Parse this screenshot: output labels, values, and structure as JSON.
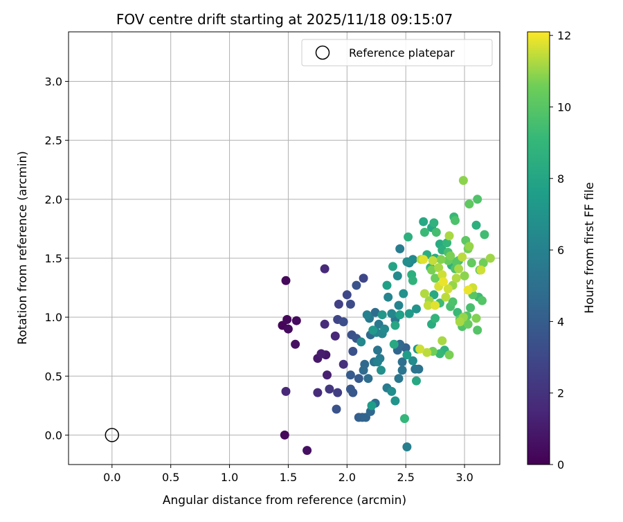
{
  "chart_data": {
    "type": "scatter",
    "title": "FOV centre drift starting at 2025/11/18 09:15:07",
    "xlabel": "Angular distance from reference (arcmin)",
    "ylabel": "Rotation from reference (arcmin)",
    "xlim": [
      -0.37,
      3.3
    ],
    "ylim": [
      -0.25,
      3.42
    ],
    "xticks": [
      "0.0",
      "0.5",
      "1.0",
      "1.5",
      "2.0",
      "2.5",
      "3.0"
    ],
    "yticks": [
      "0.0",
      "0.5",
      "1.0",
      "1.5",
      "2.0",
      "2.5",
      "3.0"
    ],
    "grid": true,
    "legend": {
      "location": "upper right",
      "label": "Reference platepar"
    },
    "reference_point": {
      "x": 0.0,
      "y": 0.0
    },
    "colorbar": {
      "label": "Hours from first FF file",
      "range": [
        0,
        12.1
      ],
      "ticks": [
        "0",
        "2",
        "4",
        "6",
        "8",
        "10",
        "12"
      ],
      "colormap": "viridis"
    },
    "series": [
      {
        "points": [
          [
            1.48,
            1.31,
            0.3
          ],
          [
            1.45,
            0.93,
            0.2
          ],
          [
            1.49,
            0.98,
            0.3
          ],
          [
            1.5,
            0.9,
            0.4
          ],
          [
            1.57,
            0.97,
            0.4
          ],
          [
            1.56,
            0.77,
            0.6
          ],
          [
            1.47,
            0.0,
            0.3
          ],
          [
            1.66,
            -0.13,
            0.6
          ],
          [
            1.48,
            0.37,
            1.5
          ],
          [
            1.75,
            0.65,
            0.9
          ],
          [
            1.78,
            0.69,
            1.1
          ],
          [
            1.82,
            0.68,
            0.9
          ],
          [
            1.83,
            0.51,
            1.2
          ],
          [
            1.81,
            1.41,
            1.6
          ],
          [
            1.81,
            0.94,
            1.7
          ],
          [
            1.75,
            0.36,
            1.7
          ],
          [
            1.9,
            0.84,
            1.5
          ],
          [
            1.97,
            0.6,
            1.9
          ],
          [
            1.85,
            0.39,
            2.2
          ],
          [
            1.92,
            0.36,
            2.5
          ],
          [
            1.92,
            0.98,
            2.9
          ],
          [
            1.93,
            1.11,
            2.6
          ],
          [
            2.0,
            1.19,
            3.0
          ],
          [
            2.03,
            1.11,
            3.1
          ],
          [
            1.97,
            0.96,
            3.3
          ],
          [
            2.05,
            0.71,
            3.4
          ],
          [
            2.04,
            0.85,
            3.4
          ],
          [
            2.08,
            0.82,
            3.6
          ],
          [
            2.08,
            1.27,
            3.5
          ],
          [
            2.14,
            1.33,
            2.9
          ],
          [
            1.91,
            0.22,
            3.5
          ],
          [
            2.03,
            0.39,
            3.7
          ],
          [
            2.05,
            0.36,
            3.7
          ],
          [
            2.03,
            0.51,
            3.9
          ],
          [
            2.1,
            0.48,
            3.9
          ],
          [
            2.1,
            0.15,
            4.1
          ],
          [
            2.13,
            0.15,
            4.3
          ],
          [
            2.16,
            0.15,
            4.4
          ],
          [
            2.2,
            0.2,
            4.6
          ],
          [
            2.24,
            0.27,
            4.9
          ],
          [
            2.15,
            0.6,
            4.6
          ],
          [
            2.14,
            0.55,
            4.7
          ],
          [
            2.18,
            0.48,
            4.9
          ],
          [
            2.23,
            0.62,
            5.2
          ],
          [
            2.2,
            0.85,
            4.7
          ],
          [
            2.24,
            1.04,
            4.8
          ],
          [
            2.26,
            0.72,
            5.3
          ],
          [
            2.28,
            0.65,
            5.7
          ],
          [
            2.27,
            0.94,
            5.5
          ],
          [
            2.19,
            0.99,
            5.6
          ],
          [
            2.17,
            1.02,
            6.0
          ],
          [
            2.12,
            0.79,
            6.4
          ],
          [
            2.29,
            0.55,
            6.8
          ],
          [
            2.26,
            0.62,
            6.0
          ],
          [
            2.34,
            0.4,
            5.7
          ],
          [
            2.38,
            0.37,
            6.6
          ],
          [
            2.41,
            0.29,
            7.0
          ],
          [
            2.25,
            0.87,
            6.2
          ],
          [
            2.3,
            0.86,
            6.3
          ],
          [
            2.32,
            0.9,
            6.5
          ],
          [
            2.35,
            1.17,
            6.2
          ],
          [
            2.38,
            1.03,
            6.3
          ],
          [
            2.41,
            0.98,
            5.5
          ],
          [
            2.44,
            1.1,
            6.1
          ],
          [
            2.44,
            0.48,
            5.4
          ],
          [
            2.47,
            0.55,
            5.3
          ],
          [
            2.45,
            0.77,
            4.6
          ],
          [
            2.47,
            0.62,
            5.0
          ],
          [
            2.43,
            0.72,
            4.5
          ],
          [
            2.5,
            0.74,
            4.2
          ],
          [
            2.51,
            -0.1,
            5.9
          ],
          [
            2.45,
            1.58,
            5.7
          ],
          [
            2.43,
            1.35,
            6.5
          ],
          [
            2.51,
            1.47,
            6.7
          ],
          [
            2.48,
            1.2,
            6.9
          ],
          [
            2.53,
            1.46,
            6.3
          ],
          [
            2.56,
            1.49,
            6.5
          ],
          [
            2.59,
            1.07,
            7.0
          ],
          [
            2.58,
            0.56,
            5.3
          ],
          [
            2.61,
            0.56,
            5.2
          ],
          [
            2.56,
            0.63,
            6.6
          ],
          [
            2.6,
            0.73,
            7.3
          ],
          [
            2.51,
            0.68,
            7.5
          ],
          [
            2.59,
            0.46,
            8.1
          ],
          [
            2.49,
            0.14,
            9.0
          ],
          [
            2.21,
            0.25,
            7.5
          ],
          [
            2.22,
            0.89,
            7.3
          ],
          [
            2.3,
            1.02,
            7.2
          ],
          [
            2.34,
            1.27,
            7.7
          ],
          [
            2.39,
            1.43,
            7.9
          ],
          [
            2.4,
            0.77,
            8.2
          ],
          [
            2.41,
            0.93,
            8.1
          ],
          [
            2.45,
            1.02,
            7.6
          ],
          [
            2.52,
            1.68,
            8.6
          ],
          [
            2.53,
            1.03,
            7.4
          ],
          [
            2.55,
            1.36,
            8.6
          ],
          [
            2.56,
            1.31,
            8.8
          ],
          [
            2.65,
            1.81,
            8.1
          ],
          [
            2.72,
            1.76,
            8.1
          ],
          [
            2.68,
            1.53,
            8.5
          ],
          [
            2.66,
            1.72,
            9.2
          ],
          [
            2.74,
            1.8,
            8.7
          ],
          [
            2.75,
            1.5,
            8.4
          ],
          [
            2.71,
            1.42,
            8.9
          ],
          [
            2.76,
            1.72,
            9.5
          ],
          [
            2.79,
            1.62,
            8.3
          ],
          [
            2.81,
            1.57,
            8.6
          ],
          [
            2.85,
            1.63,
            9.0
          ],
          [
            2.86,
            1.55,
            9.6
          ],
          [
            2.89,
            1.44,
            8.8
          ],
          [
            2.91,
            1.85,
            9.1
          ],
          [
            2.92,
            1.82,
            9.7
          ],
          [
            2.92,
            1.41,
            9.8
          ],
          [
            2.95,
            1.48,
            9.5
          ],
          [
            3.04,
            1.96,
            10.2
          ],
          [
            3.11,
            2.0,
            9.8
          ],
          [
            2.99,
            2.16,
            10.9
          ],
          [
            3.1,
            1.78,
            8.6
          ],
          [
            3.17,
            1.7,
            9.4
          ],
          [
            3.01,
            1.65,
            10.1
          ],
          [
            2.74,
            1.19,
            8.2
          ],
          [
            2.75,
            0.99,
            8.9
          ],
          [
            2.72,
            0.94,
            8.4
          ],
          [
            2.79,
            0.69,
            9.1
          ],
          [
            2.83,
            0.72,
            8.7
          ],
          [
            2.79,
            1.12,
            9.3
          ],
          [
            2.88,
            1.09,
            9.6
          ],
          [
            2.9,
            1.13,
            9.7
          ],
          [
            2.94,
            1.04,
            9.2
          ],
          [
            2.96,
            0.98,
            10.2
          ],
          [
            3.05,
            1.08,
            9.6
          ],
          [
            3.07,
            1.19,
            10.0
          ],
          [
            3.12,
            1.17,
            9.3
          ],
          [
            3.15,
            1.14,
            9.9
          ],
          [
            3.02,
            1.01,
            9.9
          ],
          [
            3.03,
            0.94,
            10.4
          ],
          [
            3.1,
            0.99,
            10.8
          ],
          [
            3.11,
            0.89,
            9.9
          ],
          [
            2.98,
            0.92,
            9.8
          ],
          [
            3.13,
            1.4,
            10.1
          ],
          [
            3.16,
            1.46,
            10.6
          ],
          [
            3.22,
            1.5,
            11.1
          ],
          [
            3.06,
            1.46,
            10.3
          ],
          [
            3.03,
            1.58,
            10.6
          ],
          [
            3.04,
            1.6,
            11.0
          ],
          [
            2.98,
            1.51,
            11.4
          ],
          [
            2.95,
            1.41,
            11.2
          ],
          [
            3.0,
            1.35,
            10.9
          ],
          [
            2.93,
            1.33,
            11.3
          ],
          [
            2.9,
            1.27,
            11.0
          ],
          [
            2.86,
            1.24,
            11.6
          ],
          [
            2.84,
            1.17,
            11.4
          ],
          [
            2.82,
            1.3,
            11.9
          ],
          [
            2.78,
            1.26,
            11.7
          ],
          [
            2.81,
            1.36,
            11.6
          ],
          [
            2.78,
            1.42,
            11.2
          ],
          [
            2.73,
            1.48,
            11.5
          ],
          [
            2.8,
            1.49,
            10.8
          ],
          [
            2.86,
            1.48,
            10.4
          ],
          [
            2.88,
            1.52,
            10.7
          ],
          [
            2.93,
            1.47,
            10.0
          ],
          [
            2.75,
            1.33,
            10.5
          ],
          [
            2.72,
            1.4,
            10.7
          ],
          [
            2.7,
            1.14,
            11.1
          ],
          [
            2.66,
            1.2,
            11.3
          ],
          [
            2.69,
            1.1,
            11.5
          ],
          [
            2.75,
            1.1,
            11.8
          ],
          [
            2.62,
            0.73,
            11.6
          ],
          [
            2.68,
            0.7,
            11.4
          ],
          [
            2.73,
            0.71,
            10.6
          ],
          [
            2.81,
            0.8,
            11.2
          ],
          [
            2.87,
            0.68,
            10.7
          ],
          [
            2.96,
            0.96,
            11.2
          ],
          [
            3.03,
            1.23,
            11.9
          ],
          [
            3.07,
            1.25,
            11.6
          ],
          [
            2.63,
            1.49,
            11.3
          ],
          [
            2.65,
            1.49,
            11.8
          ],
          [
            2.87,
            1.69,
            11.2
          ],
          [
            3.14,
            1.4,
            11.6
          ],
          [
            2.99,
            1.0,
            11.0
          ]
        ]
      }
    ]
  }
}
